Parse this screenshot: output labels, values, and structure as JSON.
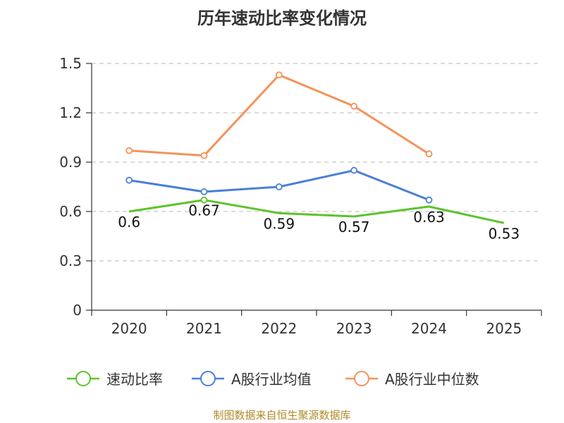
{
  "chart_data": {
    "type": "line",
    "title": "历年速动比率变化情况",
    "categories": [
      "2020",
      "2021",
      "2022",
      "2023",
      "2024",
      "2025"
    ],
    "ylim": [
      0,
      1.5
    ],
    "yticks": [
      "0",
      "0.3",
      "0.6",
      "0.9",
      "1.2",
      "1.5"
    ],
    "ytick_values": [
      0,
      0.3,
      0.6,
      0.9,
      1.2,
      1.5
    ],
    "grid": true,
    "legend_position": "bottom",
    "series": [
      {
        "name": "速动比率",
        "color": "#5cc32b",
        "values": [
          0.6,
          0.67,
          0.59,
          0.57,
          0.63,
          0.53
        ],
        "labels": [
          "0.6",
          "0.67",
          "0.59",
          "0.57",
          "0.63",
          "0.53"
        ],
        "markers": [
          false,
          true,
          false,
          false,
          false,
          false
        ]
      },
      {
        "name": "A股行业均值",
        "color": "#4a7fd8",
        "values": [
          0.79,
          0.72,
          0.75,
          0.85,
          0.67,
          null
        ]
      },
      {
        "name": "A股行业中位数",
        "color": "#f5925a",
        "values": [
          0.97,
          0.94,
          1.43,
          1.24,
          0.95,
          null
        ]
      }
    ]
  },
  "footer": {
    "source": "制图数据来自恒生聚源数据库"
  }
}
